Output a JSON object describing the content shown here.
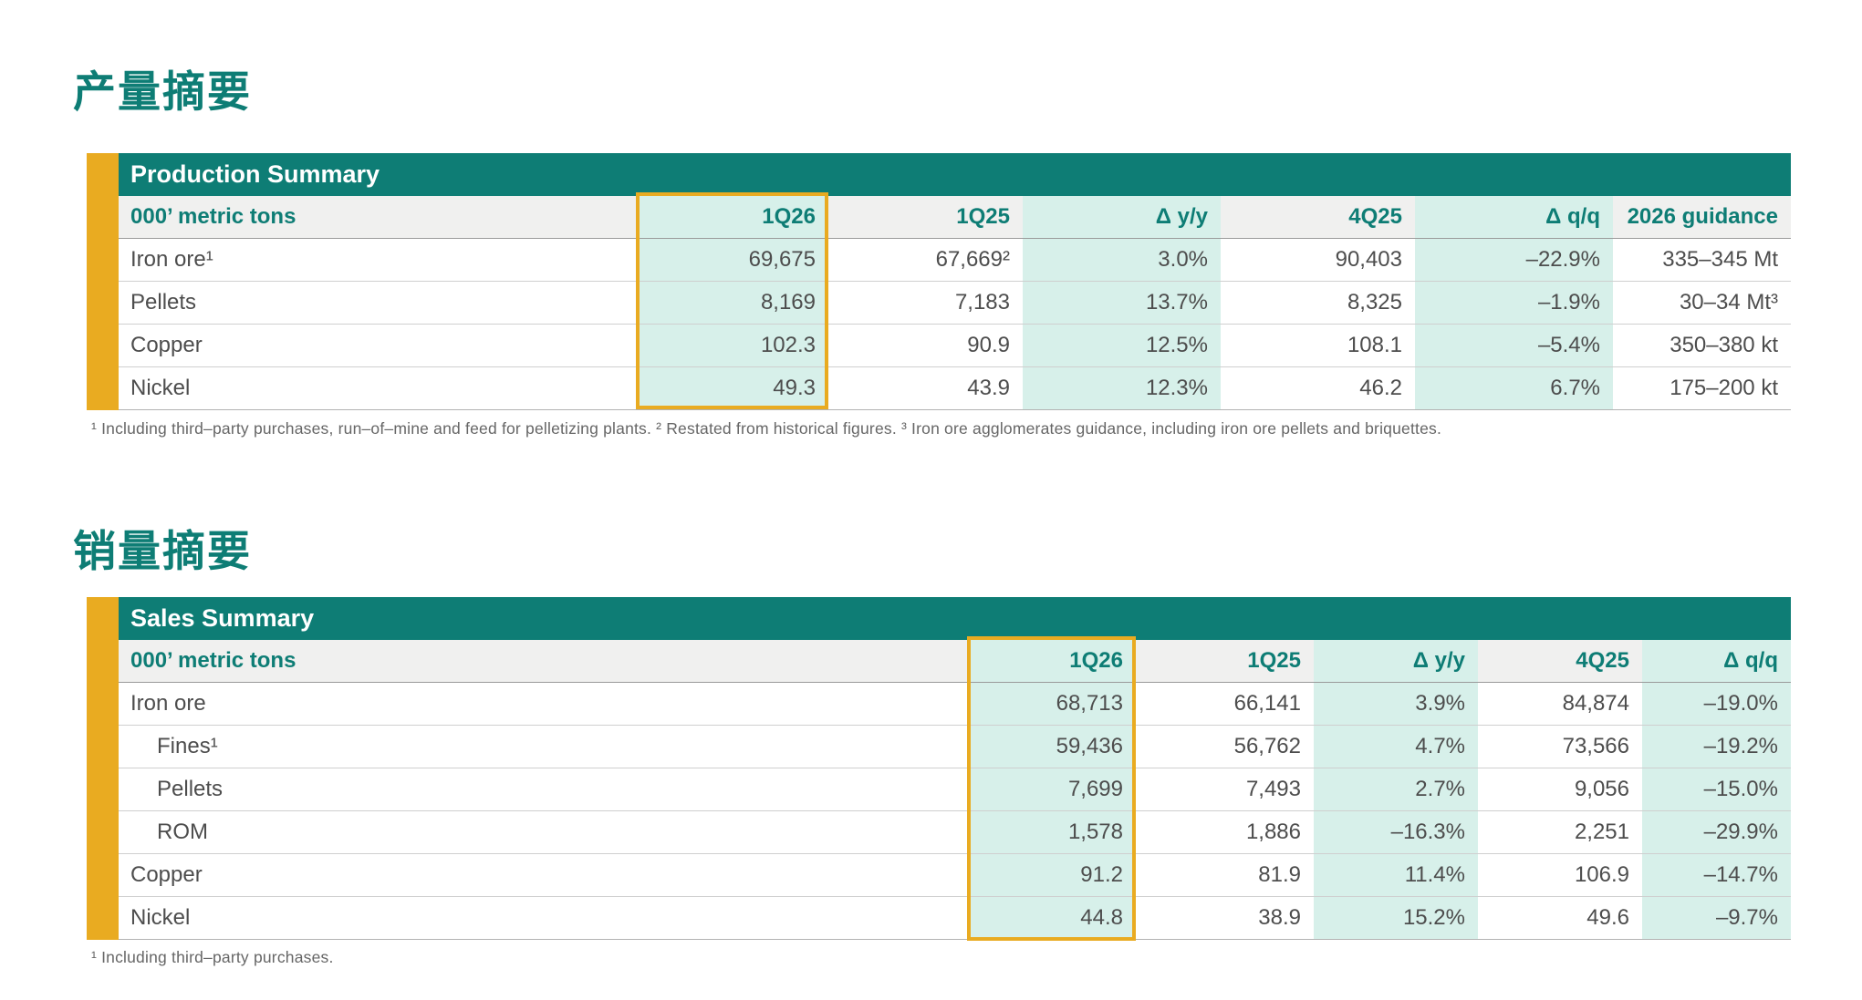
{
  "headings": {
    "production": "产量摘要",
    "sales": "销量摘要"
  },
  "colors": {
    "teal": "#0E7D75",
    "gold_accent": "#E9AB21",
    "mint_highlight": "#D7F0EA",
    "header_gray": "#F0F0EF"
  },
  "production": {
    "title": "Production Summary",
    "unit_label": "000’ metric tons",
    "columns": [
      "1Q26",
      "1Q25",
      "Δ y/y",
      "4Q25",
      "Δ q/q",
      "2026 guidance"
    ],
    "rows": [
      {
        "label": "Iron ore¹",
        "cells": [
          "69,675",
          "67,669²",
          "3.0%",
          "90,403",
          "–22.9%",
          "335–345 Mt"
        ]
      },
      {
        "label": "Pellets",
        "cells": [
          "8,169",
          "7,183",
          "13.7%",
          "8,325",
          "–1.9%",
          "30–34 Mt³"
        ]
      },
      {
        "label": "Copper",
        "cells": [
          "102.3",
          "90.9",
          "12.5%",
          "108.1",
          "–5.4%",
          "350–380 kt"
        ]
      },
      {
        "label": "Nickel",
        "cells": [
          "49.3",
          "43.9",
          "12.3%",
          "46.2",
          "6.7%",
          "175–200 kt"
        ]
      }
    ],
    "footnote": "¹ Including third–party purchases, run–of–mine and feed for pelletizing plants. ² Restated from historical figures. ³ Iron ore agglomerates guidance, including iron ore pellets and briquettes."
  },
  "sales": {
    "title": "Sales Summary",
    "unit_label": "000’ metric tons",
    "columns": [
      "1Q26",
      "1Q25",
      "Δ y/y",
      "4Q25",
      "Δ q/q"
    ],
    "rows": [
      {
        "label": "Iron ore",
        "cells": [
          "68,713",
          "66,141",
          "3.9%",
          "84,874",
          "–19.0%"
        ]
      },
      {
        "label": "Fines¹",
        "cells": [
          "59,436",
          "56,762",
          "4.7%",
          "73,566",
          "–19.2%"
        ]
      },
      {
        "label": "Pellets",
        "cells": [
          "7,699",
          "7,493",
          "2.7%",
          "9,056",
          "–15.0%"
        ]
      },
      {
        "label": "ROM",
        "cells": [
          "1,578",
          "1,886",
          "–16.3%",
          "2,251",
          "–29.9%"
        ]
      },
      {
        "label": "Copper",
        "cells": [
          "91.2",
          "81.9",
          "11.4%",
          "106.9",
          "–14.7%"
        ]
      },
      {
        "label": "Nickel",
        "cells": [
          "44.8",
          "38.9",
          "15.2%",
          "49.6",
          "–9.7%"
        ]
      }
    ],
    "footnote": "¹ Including third–party purchases."
  }
}
